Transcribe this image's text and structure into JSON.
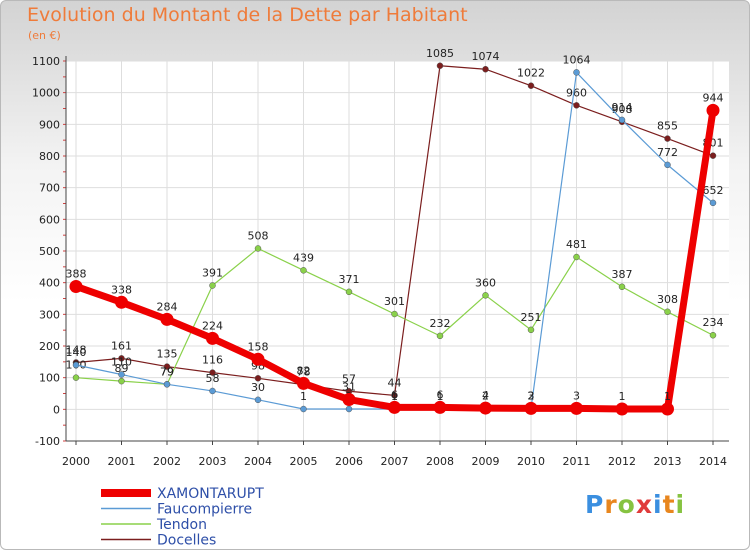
{
  "title": "Evolution du Montant de la Dette par Habitant",
  "unit": "(en €)",
  "logo": {
    "letters": [
      "P",
      "r",
      "o",
      "x",
      "i",
      "t",
      "i"
    ],
    "colors": [
      "#3b8fe0",
      "#e8861e",
      "#86c341",
      "#e03b3b",
      "#3b8fe0",
      "#e8861e",
      "#86c341"
    ]
  },
  "chart_data": {
    "type": "line",
    "title": "Evolution du Montant de la Dette par Habitant",
    "ylabel": "(en €)",
    "x": [
      2000,
      2001,
      2002,
      2003,
      2004,
      2005,
      2006,
      2007,
      2008,
      2009,
      2010,
      2011,
      2012,
      2013,
      2014
    ],
    "ylim": [
      -100,
      1100
    ],
    "yticks": [
      -100,
      0,
      100,
      200,
      300,
      400,
      500,
      600,
      700,
      800,
      900,
      1000,
      1100
    ],
    "grid": true,
    "legend": "bottom-left",
    "series": [
      {
        "name": "Docelles",
        "color": "#7b1e1e",
        "width": 1.2,
        "values": [
          148,
          161,
          135,
          116,
          98,
          78,
          57,
          44,
          1085,
          1074,
          1022,
          960,
          908,
          855,
          801
        ]
      },
      {
        "name": "Tendon",
        "color": "#8ad14a",
        "width": 1.2,
        "values": [
          100,
          89,
          79,
          391,
          508,
          439,
          371,
          301,
          232,
          360,
          251,
          481,
          387,
          308,
          234
        ]
      },
      {
        "name": "Faucompierre",
        "color": "#5b9bd5",
        "width": 1.2,
        "values": [
          140,
          110,
          79,
          58,
          30,
          1,
          1,
          1,
          1,
          2,
          2,
          1064,
          914,
          772,
          652
        ]
      },
      {
        "name": "XAMONTARUPT",
        "color": "#ee0000",
        "width": 7,
        "values": [
          388,
          338,
          284,
          224,
          158,
          82,
          31,
          6,
          6,
          4,
          3,
          3,
          1,
          1,
          944
        ]
      }
    ]
  }
}
